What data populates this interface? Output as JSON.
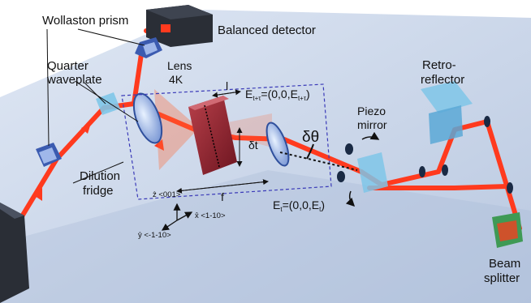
{
  "labels": {
    "wollaston_prism": "Wollaston prism",
    "balanced_detector": "Balanced detector",
    "quarter_waveplate_1": "Quarter",
    "quarter_waveplate_2": "waveplate",
    "lens_1": "Lens",
    "lens_2": "4K",
    "sample_length": "l",
    "field_tt_prefix": "E",
    "field_tt_sub": "t+τ",
    "field_tt_mid": "=(0,0,E",
    "field_tt_end": ")",
    "retro_1": "Retro-",
    "retro_2": "reflector",
    "piezo_1": "Piezo",
    "piezo_2": "mirror",
    "delta_theta": "δθ",
    "delta_t": "δt",
    "dilution_1": "Dilution",
    "dilution_2": "fridge",
    "focal_length": "f",
    "field_t_prefix": "E",
    "field_t_sub": "t",
    "field_t_mid": "=(0,0,E",
    "field_t_end": ")",
    "axis_z": "ẑ <001>",
    "axis_x": "x̂ <1-10>",
    "axis_y": "ŷ <-1-10>",
    "beam_1": "Beam",
    "beam_2": "splitter"
  },
  "colors": {
    "beam": "#ff3a1e",
    "table": "#c9d6ea",
    "detector": "#2a2e36",
    "prism": "#3b5bb0",
    "sample": "#8a1f2a",
    "dash_box": "#3a3ab8",
    "splitter": "#3f9a55"
  }
}
